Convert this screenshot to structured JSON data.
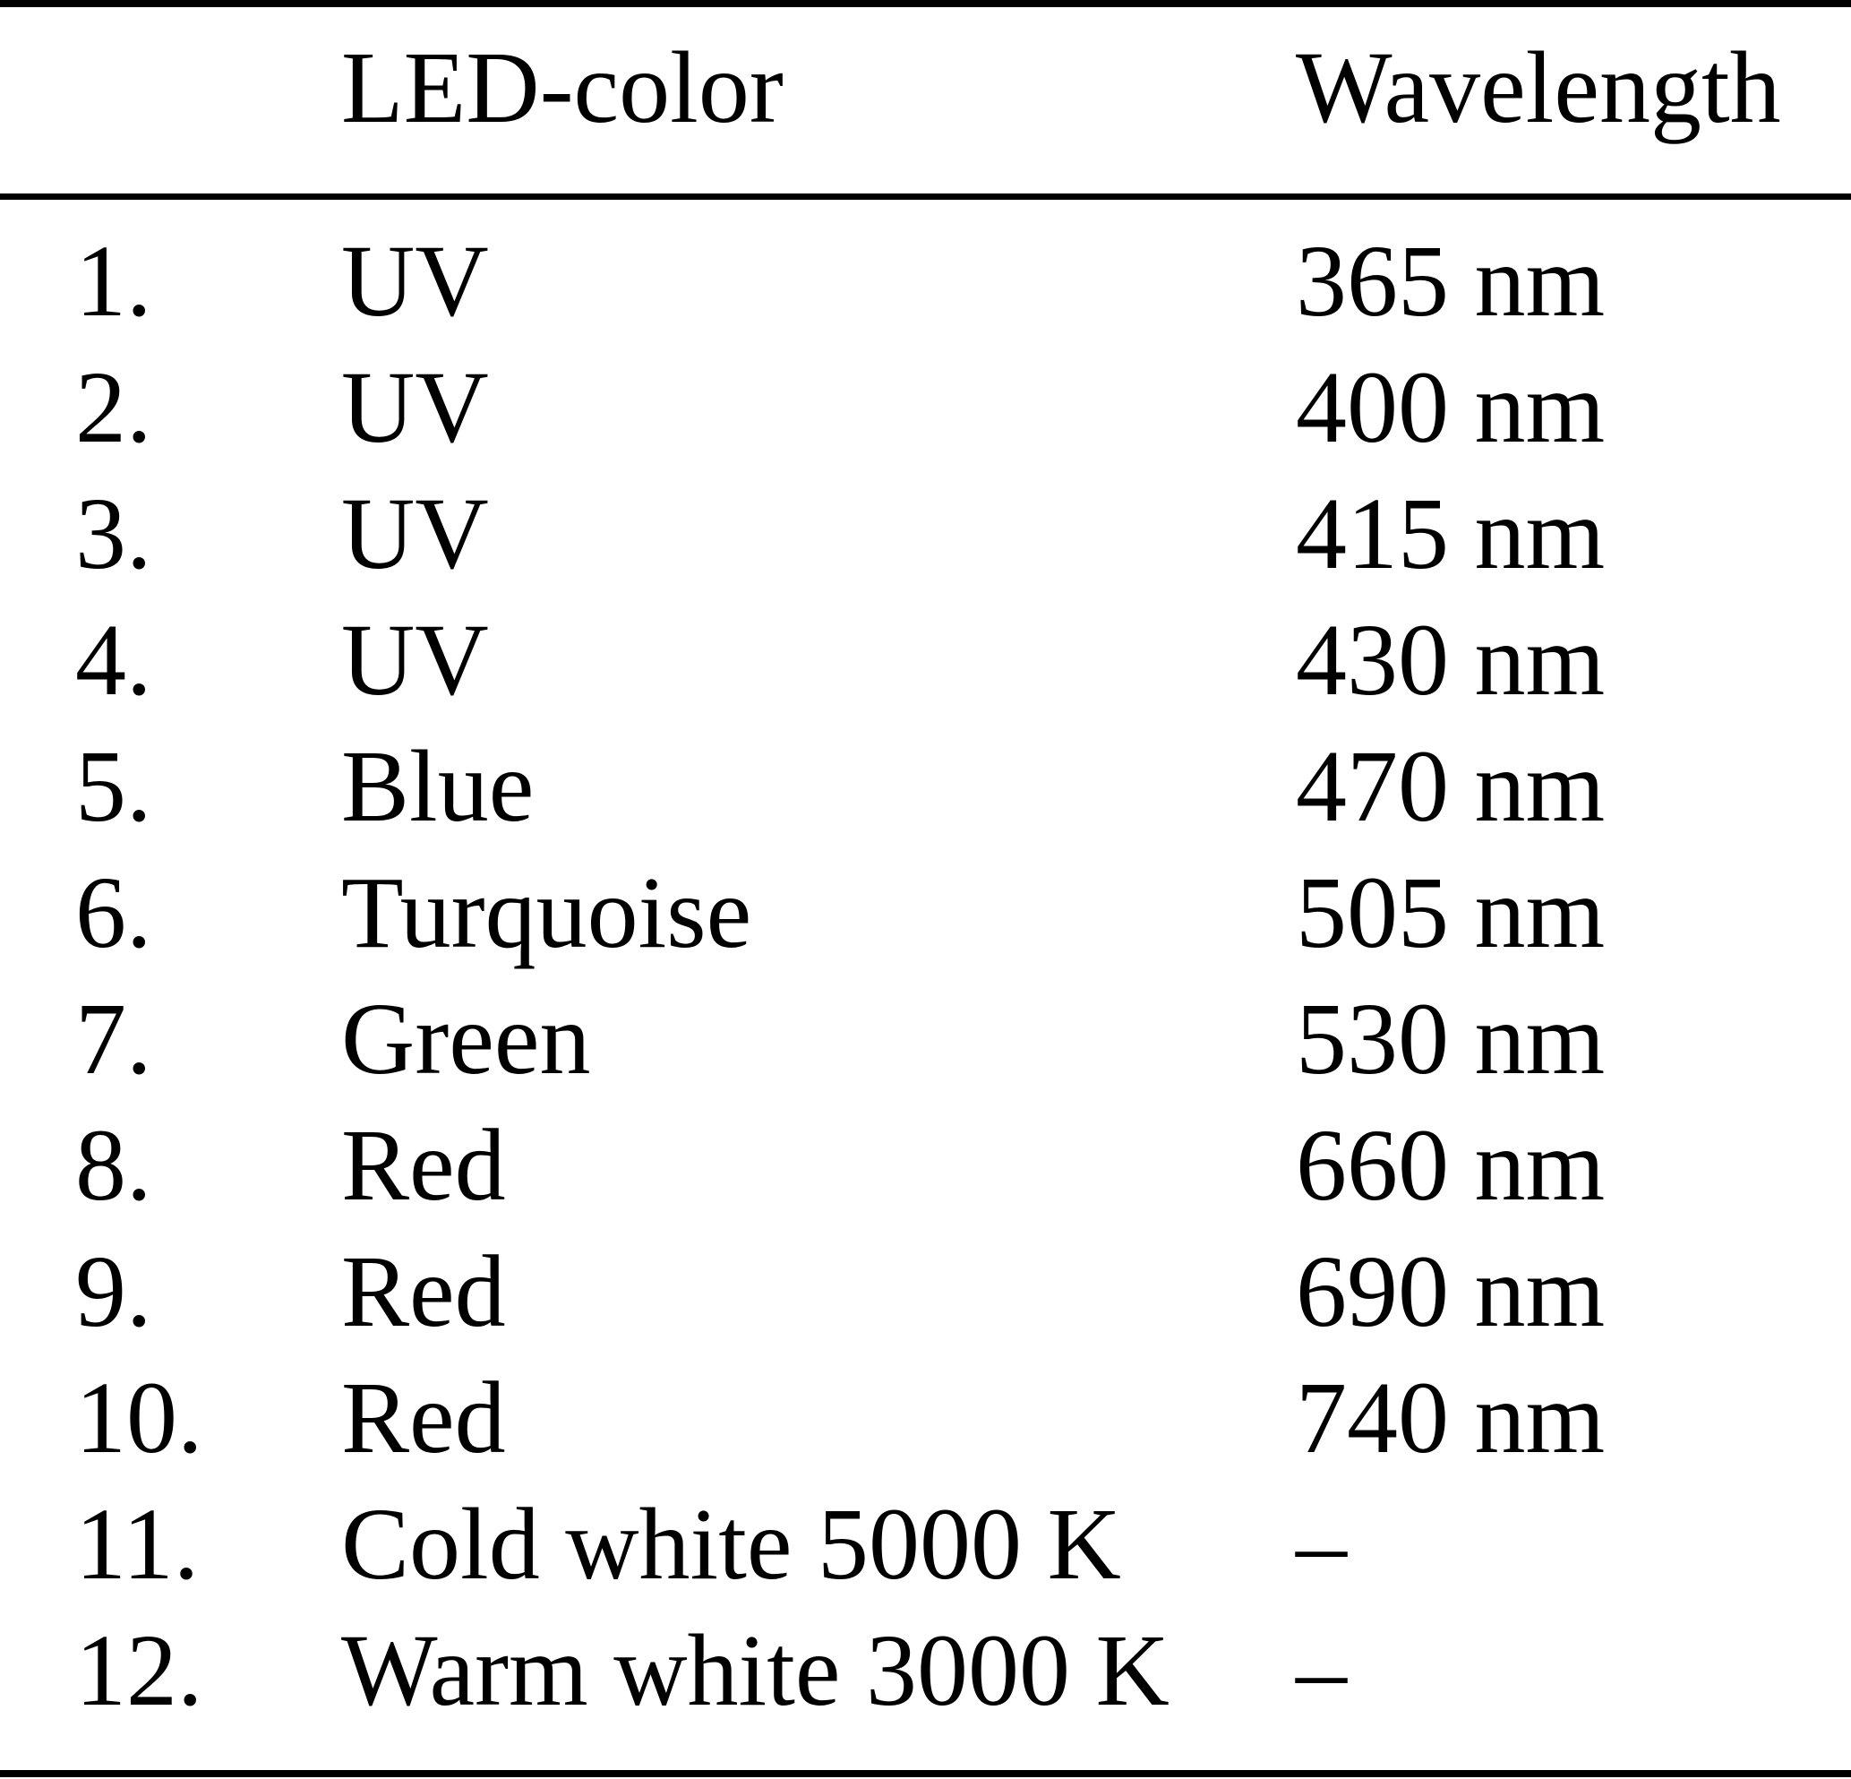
{
  "table": {
    "header": {
      "led_color": "LED-color",
      "wavelength": "Wavelength"
    },
    "rows": [
      {
        "index": "1.",
        "led_color": "UV",
        "wavelength": "365 nm"
      },
      {
        "index": "2.",
        "led_color": "UV",
        "wavelength": "400 nm"
      },
      {
        "index": "3.",
        "led_color": "UV",
        "wavelength": "415 nm"
      },
      {
        "index": "4.",
        "led_color": "UV",
        "wavelength": "430 nm"
      },
      {
        "index": "5.",
        "led_color": "Blue",
        "wavelength": "470 nm"
      },
      {
        "index": "6.",
        "led_color": "Turquoise",
        "wavelength": "505 nm"
      },
      {
        "index": "7.",
        "led_color": "Green",
        "wavelength": "530 nm"
      },
      {
        "index": "8.",
        "led_color": "Red",
        "wavelength": "660 nm"
      },
      {
        "index": "9.",
        "led_color": "Red",
        "wavelength": "690 nm"
      },
      {
        "index": "10.",
        "led_color": "Red",
        "wavelength": "740 nm"
      },
      {
        "index": "11.",
        "led_color": "Cold white 5000 K",
        "wavelength": "–"
      },
      {
        "index": "12.",
        "led_color": "Warm white 3000 K",
        "wavelength": "–"
      }
    ],
    "colors": {
      "text": "#000000",
      "background": "#ffffff",
      "rule": "#000000"
    }
  }
}
